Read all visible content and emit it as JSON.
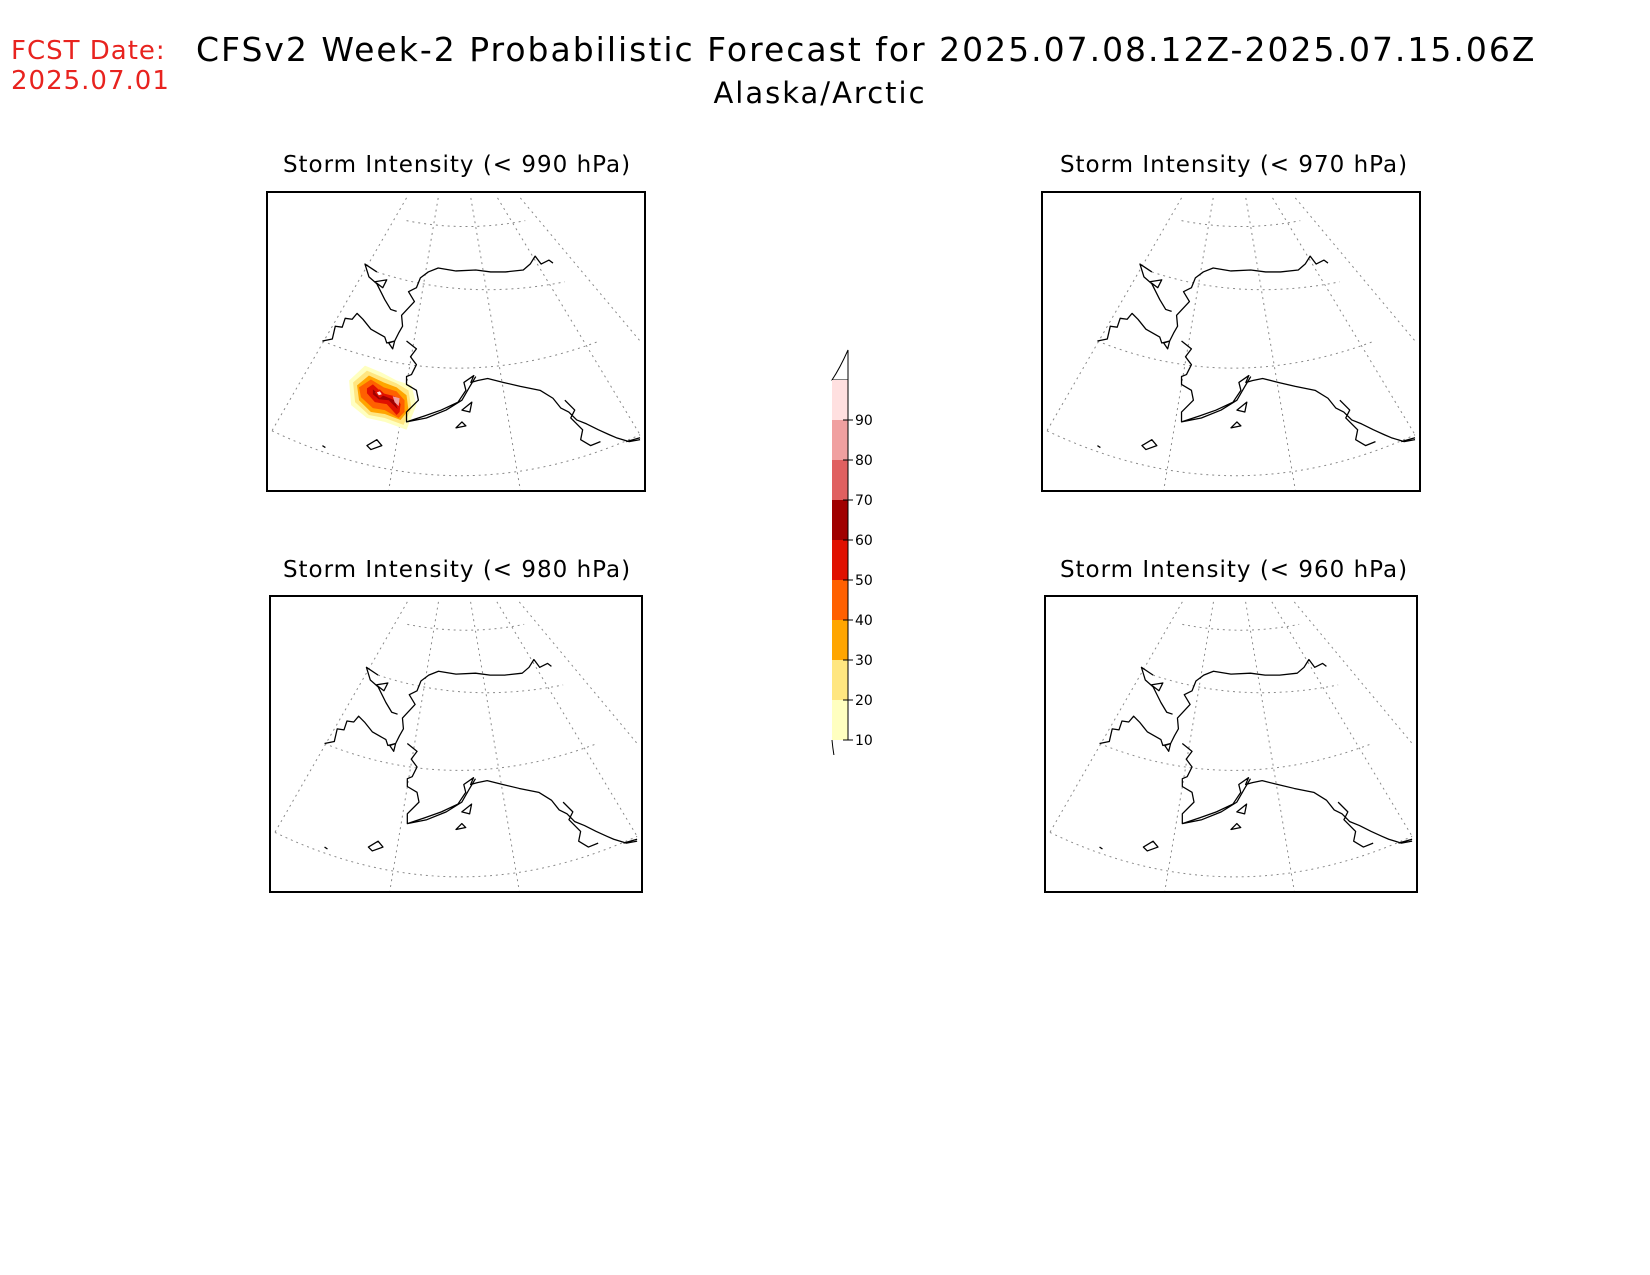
{
  "header": {
    "fcst_label": "FCST Date:",
    "fcst_date": "2025.07.01",
    "title": "CFSv2 Week-2 Probabilistic Forecast for 2025.07.08.12Z-2025.07.15.06Z",
    "region": "Alaska/Arctic"
  },
  "panels": [
    {
      "title": "Storm Intensity (< 990 hPa)",
      "has_signal": true
    },
    {
      "title": "Storm Intensity (< 970 hPa)",
      "has_signal": false
    },
    {
      "title": "Storm Intensity (< 980 hPa)",
      "has_signal": false
    },
    {
      "title": "Storm Intensity (< 960 hPa)",
      "has_signal": false
    }
  ],
  "colorbar": {
    "levels": [
      "10",
      "20",
      "30",
      "40",
      "50",
      "60",
      "70",
      "80",
      "90"
    ],
    "colors": [
      "#ffffc0",
      "#ffe680",
      "#ffa500",
      "#ff6000",
      "#e01000",
      "#a00000",
      "#e06060",
      "#f0a0a0",
      "#ffe0e0"
    ]
  },
  "colors": {
    "fcst_text": "#e8231f",
    "coastline": "#000000",
    "graticule": "#888888"
  }
}
